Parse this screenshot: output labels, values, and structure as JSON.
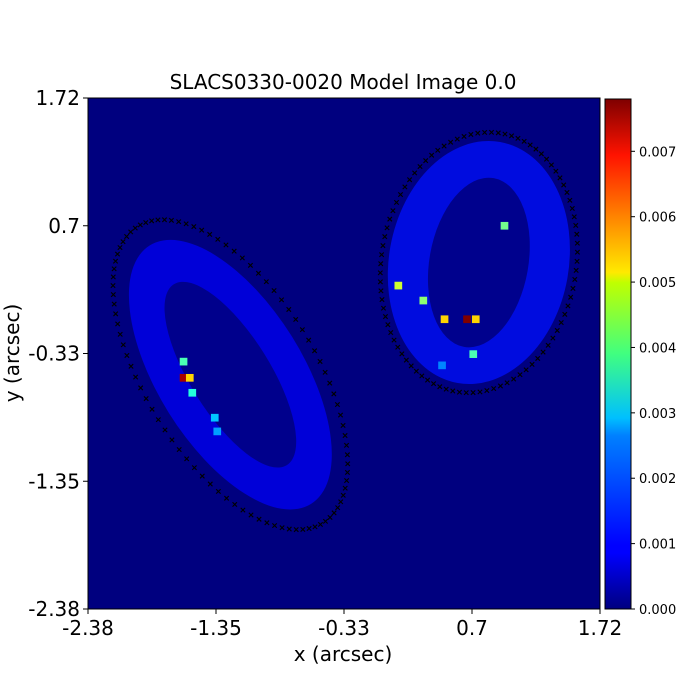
{
  "chart_data": {
    "type": "heatmap",
    "title": "SLACS0330-0020 Model Image 0.0",
    "xlabel": "x (arcsec)",
    "ylabel": "y (arcsec)",
    "xlim": [
      -2.38,
      1.72
    ],
    "ylim": [
      -2.38,
      1.72
    ],
    "x_ticks": [
      "-2.38",
      "-1.35",
      "-0.33",
      "0.7",
      "1.72"
    ],
    "y_ticks": [
      "1.72",
      "0.7",
      "-0.33",
      "-1.35",
      "-2.38"
    ],
    "colorbar": {
      "colormap": "jet",
      "range": [
        0.0,
        0.0078
      ],
      "ticks": [
        "0.000",
        "0.001",
        "0.002",
        "0.003",
        "0.004",
        "0.005",
        "0.006",
        "0.007"
      ]
    },
    "background_value": 0.0,
    "mask_border_marker": "x",
    "arc_regions": [
      {
        "name": "left-arc",
        "center": [
          -1.24,
          -0.5
        ],
        "rx": 0.58,
        "ry": 1.22,
        "rot": -32,
        "value": 0.0009
      },
      {
        "name": "right-arc",
        "center": [
          0.75,
          0.4
        ],
        "rx": 0.72,
        "ry": 0.98,
        "rot": 10,
        "value": 0.0011
      }
    ],
    "mask_outlines": [
      {
        "name": "left-mask",
        "center": [
          -1.24,
          -0.5
        ],
        "rx": 0.68,
        "ry": 1.4,
        "rot": -32
      },
      {
        "name": "right-mask",
        "center": [
          0.75,
          0.4
        ],
        "rx": 0.78,
        "ry": 1.05,
        "rot": 10
      }
    ],
    "bright_pixels": [
      {
        "x": -1.62,
        "y": -0.39,
        "value": 0.0035
      },
      {
        "x": -1.62,
        "y": -0.52,
        "value": 0.0075
      },
      {
        "x": -1.57,
        "y": -0.52,
        "value": 0.0052
      },
      {
        "x": -1.55,
        "y": -0.64,
        "value": 0.0032
      },
      {
        "x": -1.37,
        "y": -0.84,
        "value": 0.0025
      },
      {
        "x": -1.35,
        "y": -0.95,
        "value": 0.0022
      },
      {
        "x": 0.1,
        "y": 0.22,
        "value": 0.0045
      },
      {
        "x": 0.3,
        "y": 0.1,
        "value": 0.004
      },
      {
        "x": 0.47,
        "y": -0.05,
        "value": 0.0052
      },
      {
        "x": 0.65,
        "y": -0.05,
        "value": 0.0078
      },
      {
        "x": 0.72,
        "y": -0.05,
        "value": 0.0052
      },
      {
        "x": 0.7,
        "y": -0.33,
        "value": 0.0035
      },
      {
        "x": 0.95,
        "y": 0.7,
        "value": 0.0038
      },
      {
        "x": 0.45,
        "y": -0.42,
        "value": 0.002
      }
    ]
  }
}
